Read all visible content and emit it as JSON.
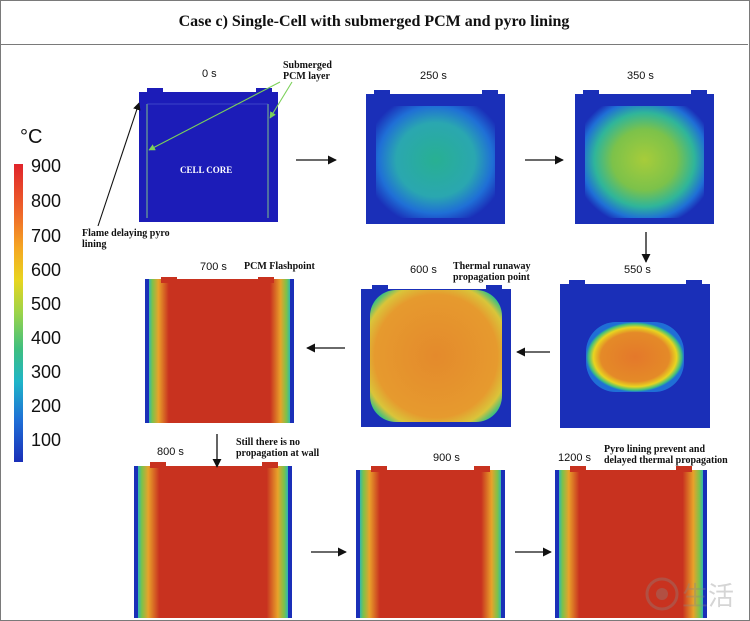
{
  "title": "Case c) Single-Cell with submerged PCM and pyro lining",
  "colorbar": {
    "unit": "°C",
    "ticks": [
      "900",
      "800",
      "700",
      "600",
      "500",
      "400",
      "300",
      "200",
      "100"
    ],
    "colors": [
      "#e0242b",
      "#ef6a2a",
      "#f5a623",
      "#e8d51f",
      "#9bd44a",
      "#3fbf7f",
      "#1fb5c8",
      "#1f6fd6",
      "#1a2fb8"
    ]
  },
  "panels": [
    {
      "time": "0 s",
      "state": "cold"
    },
    {
      "time": "250 s",
      "state": "warming"
    },
    {
      "time": "350 s",
      "state": "warm"
    },
    {
      "time": "550 s",
      "state": "hot-core"
    },
    {
      "time": "600 s",
      "state": "runaway"
    },
    {
      "time": "700 s",
      "state": "full"
    },
    {
      "time": "800 s",
      "state": "full"
    },
    {
      "time": "900 s",
      "state": "full"
    },
    {
      "time": "1200 s",
      "state": "full"
    }
  ],
  "annotations": {
    "cell_core": "CELL CORE",
    "submerged_pcm": "Submerged\nPCM layer",
    "flame_pyro": "Flame delaying pyro\nlining",
    "pcm_flashpoint": "PCM Flashpoint",
    "runaway_point": "Thermal runaway\npropagation point",
    "no_propagation": "Still there is no\npropagation at wall",
    "pyro_prevent": "Pyro lining prevent and\ndelayed thermal propagation"
  },
  "watermark": "生活"
}
